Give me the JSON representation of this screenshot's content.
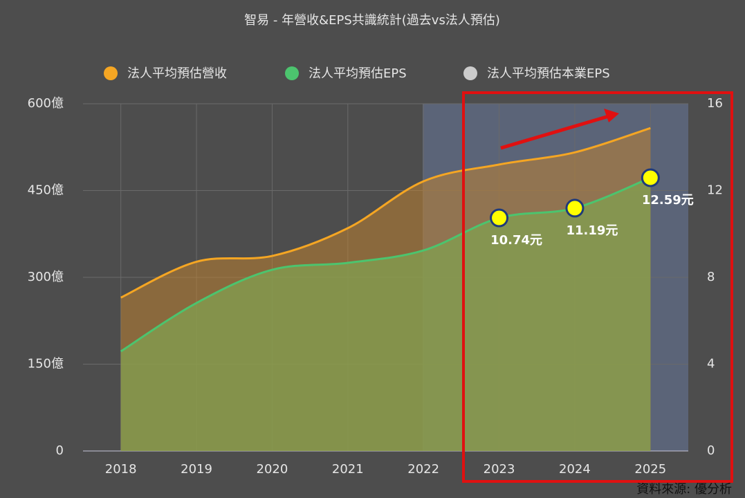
{
  "chart_data": {
    "type": "line",
    "title": "智易 - 年營收&EPS共識統計(過去vs法人預估)",
    "categories": [
      "2018",
      "2019",
      "2020",
      "2021",
      "2022",
      "2023",
      "2024",
      "2025"
    ],
    "series": [
      {
        "name": "法人平均預估營收",
        "color": "#f5a623",
        "values": [
          265,
          327,
          337,
          385,
          466,
          495,
          516,
          558
        ]
      },
      {
        "name": "法人平均預估EPS",
        "color": "#4cc46e",
        "axis": "y2",
        "values": [
          4.59,
          6.82,
          8.35,
          8.67,
          9.24,
          10.74,
          11.19,
          12.59
        ],
        "value_labels": [
          null,
          null,
          null,
          null,
          null,
          "10.74元",
          "11.19元",
          "12.59元"
        ]
      },
      {
        "name": "法人平均預估本業EPS",
        "color": "#cccccc",
        "axis": "y2",
        "values": [
          null,
          null,
          null,
          null,
          null,
          null,
          null,
          null
        ]
      }
    ],
    "ylim": [
      0,
      600
    ],
    "yticks": [
      {
        "value": 0,
        "label": "0"
      },
      {
        "value": 150,
        "label": "150億"
      },
      {
        "value": 300,
        "label": "300億"
      },
      {
        "value": 450,
        "label": "450億"
      },
      {
        "value": 600,
        "label": "600億"
      }
    ],
    "y2lim": [
      0,
      16
    ],
    "y2ticks": [
      0,
      4,
      8,
      12,
      16
    ],
    "grid": true,
    "source": "資料來源: 優分析"
  }
}
